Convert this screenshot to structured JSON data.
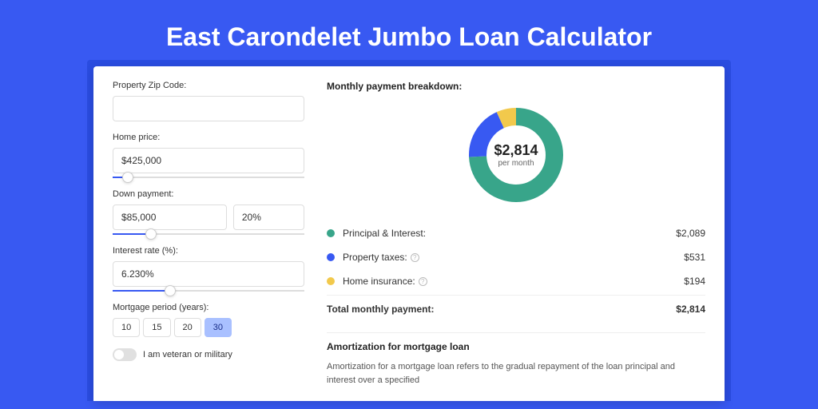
{
  "title": "East Carondelet Jumbo Loan Calculator",
  "colors": {
    "bg": "#3859f2",
    "card": "#ffffff",
    "pi": "#38a58a",
    "taxes": "#3859f2",
    "insurance": "#f2c94c"
  },
  "form": {
    "zip": {
      "label": "Property Zip Code:",
      "value": ""
    },
    "homePrice": {
      "label": "Home price:",
      "value": "$425,000",
      "slider_pct": 8
    },
    "downPayment": {
      "label": "Down payment:",
      "amount": "$85,000",
      "percent": "20%",
      "slider_pct": 20
    },
    "interestRate": {
      "label": "Interest rate (%):",
      "value": "6.230%",
      "slider_pct": 30
    },
    "mortgagePeriod": {
      "label": "Mortgage period (years):",
      "options": [
        "10",
        "15",
        "20",
        "30"
      ],
      "active": 3
    },
    "veteran": {
      "label": "I am veteran or military",
      "on": false
    }
  },
  "breakdown": {
    "title": "Monthly payment breakdown:",
    "donut": {
      "amount": "$2,814",
      "sub": "per month",
      "segments": [
        {
          "color": "#38a58a",
          "pct": 74.2
        },
        {
          "color": "#3859f2",
          "pct": 18.9
        },
        {
          "color": "#f2c94c",
          "pct": 6.9
        }
      ]
    },
    "rows": [
      {
        "color": "#38a58a",
        "label": "Principal & Interest:",
        "value": "$2,089",
        "info": false
      },
      {
        "color": "#3859f2",
        "label": "Property taxes:",
        "value": "$531",
        "info": true
      },
      {
        "color": "#f2c94c",
        "label": "Home insurance:",
        "value": "$194",
        "info": true
      }
    ],
    "total": {
      "label": "Total monthly payment:",
      "value": "$2,814"
    }
  },
  "amortization": {
    "title": "Amortization for mortgage loan",
    "text": "Amortization for a mortgage loan refers to the gradual repayment of the loan principal and interest over a specified"
  }
}
